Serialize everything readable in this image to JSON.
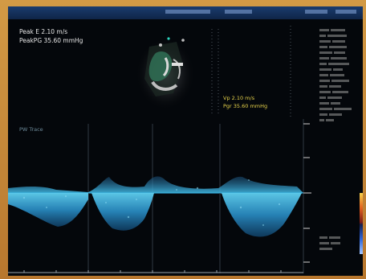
{
  "measurement": {
    "line1": "Peak E 2.10 m/s",
    "line2": "PeakPG 35.60 mmHg"
  },
  "marker": {
    "line1": "Vp 2.10 m/s",
    "line2": "Pgr 35.60 mmHg"
  },
  "trace_label": "PW Trace",
  "colors": {
    "frame": "#c8893b",
    "screen": "#04070b",
    "doppler_cyan": "#3fb6e0",
    "doppler_deep": "#1b6fa8",
    "annotation_yellow": "#e6d24a",
    "annotation_white": "#e6e6e6"
  },
  "icons": {
    "heart_thumbnail": "apical-heart-view-icon",
    "color_scale": "velocity-color-bar-icon"
  }
}
